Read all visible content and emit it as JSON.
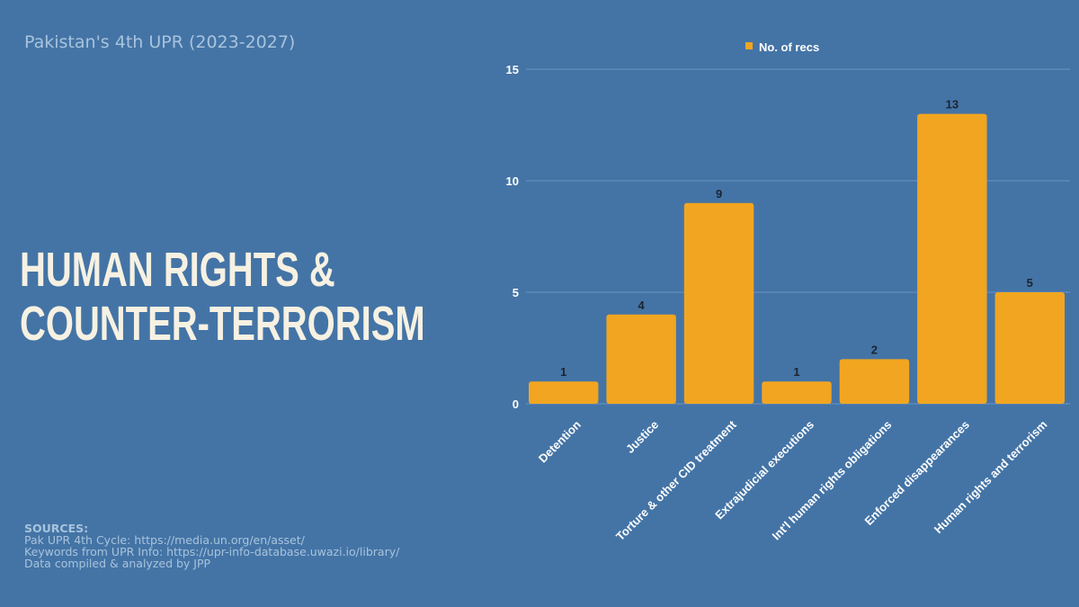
{
  "page": {
    "subtitle": "Pakistan's 4th UPR (2023-2027)",
    "headline_line1": "HUMAN RIGHTS &",
    "headline_line2": "COUNTER-TERRORISM",
    "sources_title": "SOURCES:",
    "sources": [
      "Pak UPR 4th Cycle: https://media.un.org/en/asset/",
      "Keywords from UPR Info: https://upr-info-database.uwazi.io/library/",
      "Data compiled & analyzed by JPP"
    ]
  },
  "colors": {
    "background": "#4474a6",
    "bar": "#f2a520",
    "gridline": "#6a93bd"
  },
  "chart_data": {
    "type": "bar",
    "categories": [
      "Detention",
      "Justice",
      "Torture & other CID treatment",
      "Extrajudicial executions",
      "Int'l human rights obligations",
      "Enforced disappearances",
      "Human rights and terrorism"
    ],
    "series": [
      {
        "name": "No. of recs",
        "values": [
          1,
          4,
          9,
          1,
          2,
          13,
          5
        ]
      }
    ],
    "ylim": [
      0,
      15
    ],
    "yticks": [
      0,
      5,
      10,
      15
    ],
    "grid": true,
    "legend": "top-center",
    "data_labels": true
  }
}
